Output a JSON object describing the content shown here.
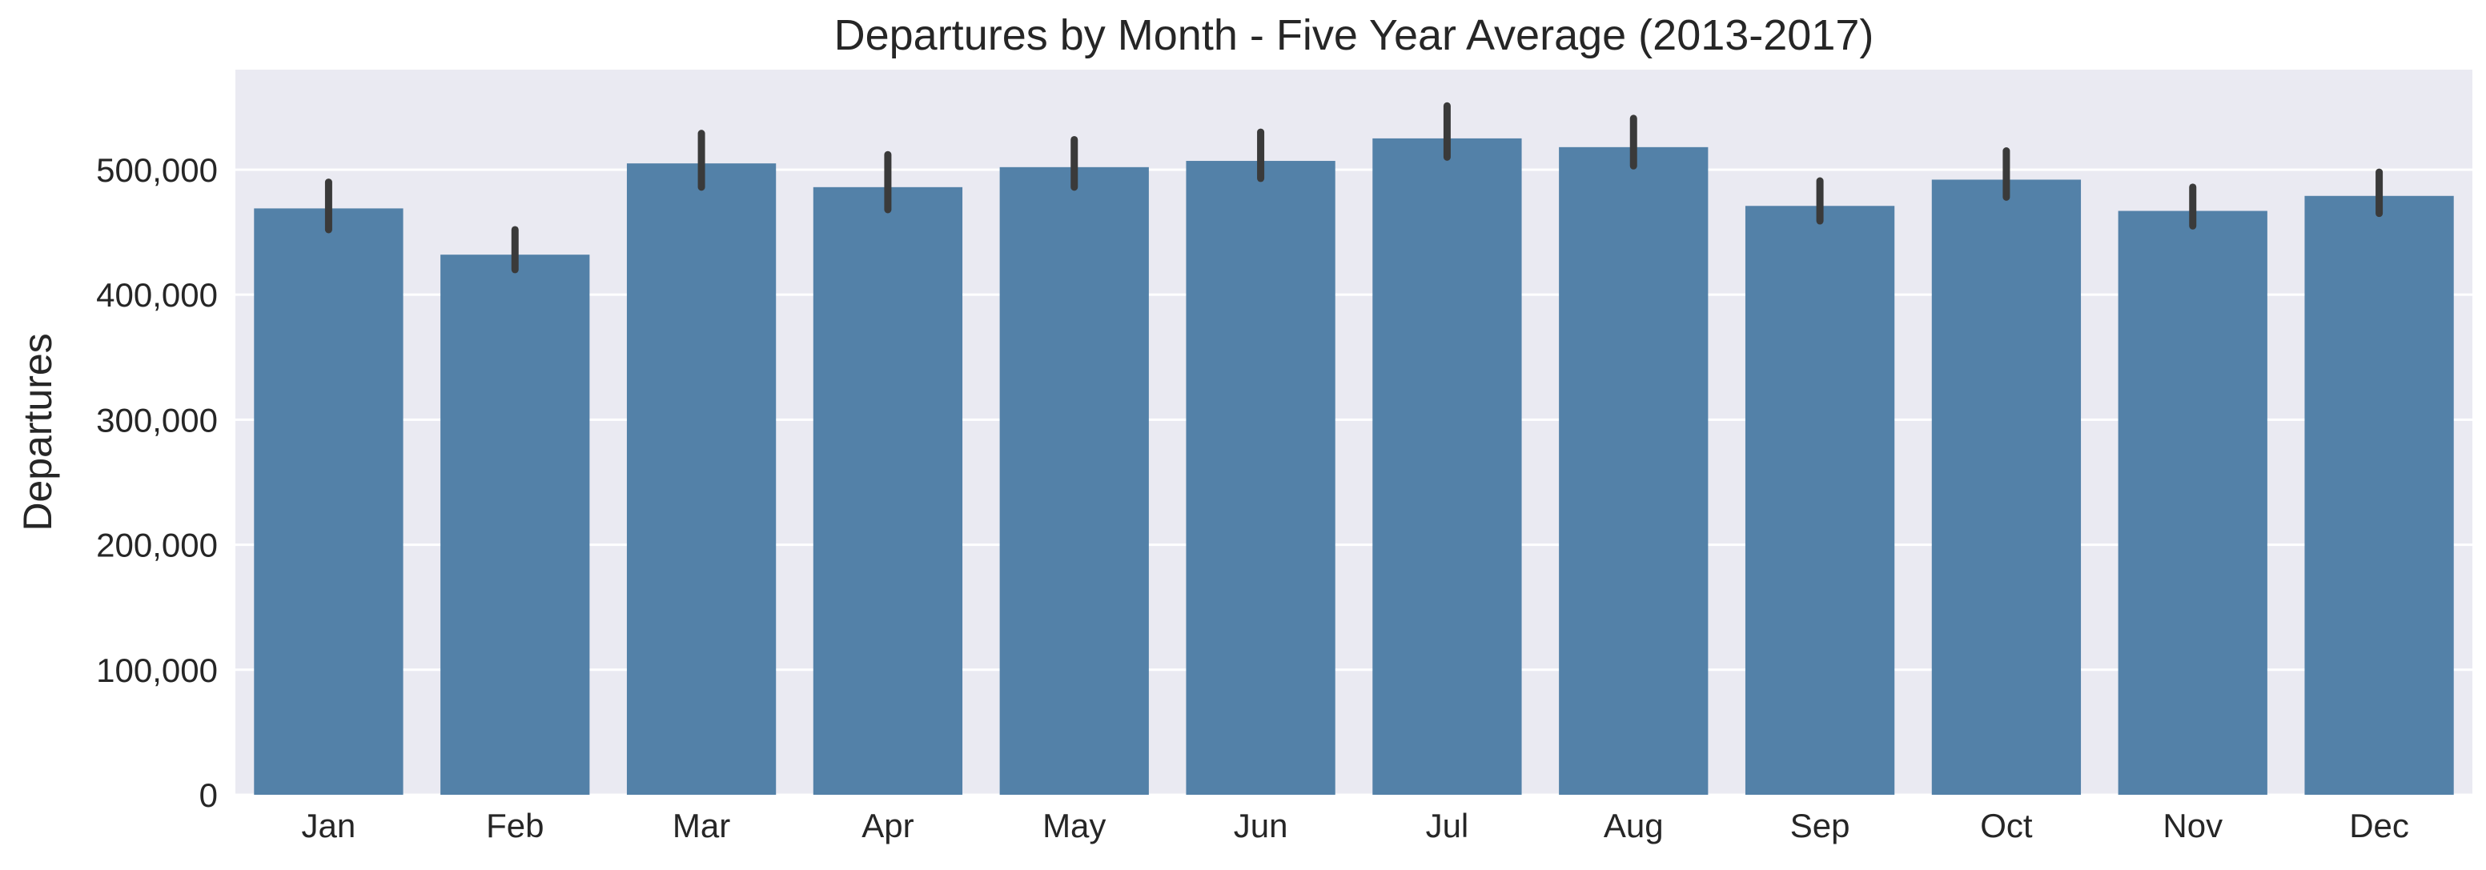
{
  "chart_data": {
    "type": "bar",
    "title": "Departures by Month - Five Year Average (2013-2017)",
    "xlabel": "",
    "ylabel": "Departures",
    "categories": [
      "Jan",
      "Feb",
      "Mar",
      "Apr",
      "May",
      "Jun",
      "Jul",
      "Aug",
      "Sep",
      "Oct",
      "Nov",
      "Dec"
    ],
    "values": [
      469000,
      432000,
      505000,
      486000,
      502000,
      507000,
      525000,
      518000,
      471000,
      492000,
      467000,
      479000
    ],
    "error_bars": [
      {
        "low": 452000,
        "high": 490000
      },
      {
        "low": 420000,
        "high": 452000
      },
      {
        "low": 486000,
        "high": 529000
      },
      {
        "low": 468000,
        "high": 512000
      },
      {
        "low": 486000,
        "high": 524000
      },
      {
        "low": 493000,
        "high": 530000
      },
      {
        "low": 510000,
        "high": 551000
      },
      {
        "low": 503000,
        "high": 541000
      },
      {
        "low": 459000,
        "high": 491000
      },
      {
        "low": 478000,
        "high": 515000
      },
      {
        "low": 455000,
        "high": 486000
      },
      {
        "low": 465000,
        "high": 498000
      }
    ],
    "ylim": [
      0,
      580000
    ],
    "yticks": [
      0,
      100000,
      200000,
      300000,
      400000,
      500000
    ],
    "ytick_labels": [
      "0",
      "100,000",
      "200,000",
      "300,000",
      "400,000",
      "500,000"
    ],
    "grid": true,
    "legend": "none",
    "colors": {
      "bar": "#5381a8",
      "error_bar": "#3a3a3a",
      "plot_background": "#eaeaf2",
      "grid": "#ffffff"
    }
  }
}
